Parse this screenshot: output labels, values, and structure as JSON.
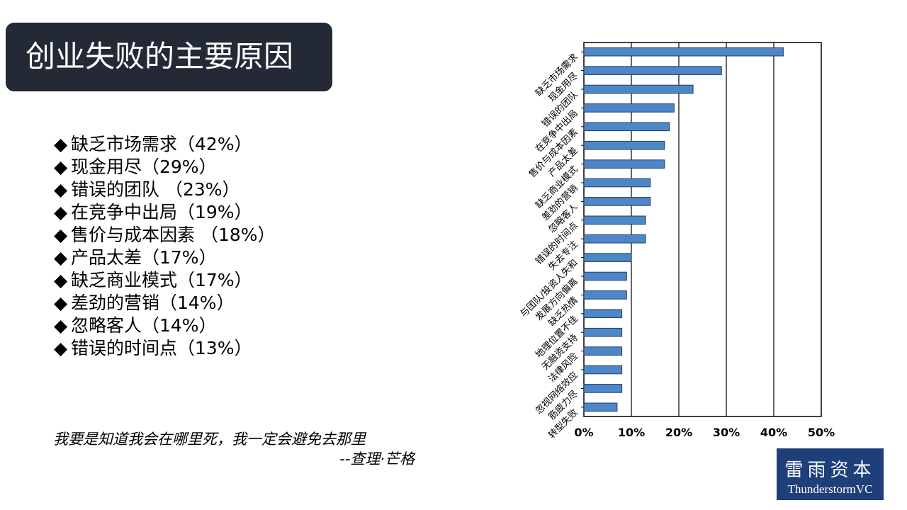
{
  "title": "创业失败的主要原因",
  "bullet_marker": "◆",
  "bullets": [
    "缺乏市场需求（42%）",
    "现金用尽（29%）",
    "错误的团队 （23%）",
    "在竞争中出局（19%）",
    "售价与成本因素 （18%）",
    "产品太差（17%）",
    "缺乏商业模式（17%）",
    "差劲的营销（14%）",
    "忽略客人（14%）",
    "错误的时间点（13%）"
  ],
  "quote": {
    "line1": "我要是知道我会在哪里死，我一定会避免去那里",
    "line2": "--查理·芒格"
  },
  "logo": {
    "cn": "雷雨资本",
    "en": "ThunderstormVC"
  },
  "chart_data": {
    "type": "bar",
    "orientation": "horizontal",
    "categories": [
      "缺乏市场需求",
      "现金用尽",
      "错误的团队",
      "在竞争中出局",
      "售价与成本因素",
      "产品太差",
      "缺乏商业模式",
      "差劲的营销",
      "忽略客人",
      "错误的时间点",
      "失去专注",
      "与团队/投资人失和",
      "发展方向偏离",
      "缺乏热情",
      "地理位置不佳",
      "无融资支持",
      "法律风险",
      "忽视网络效应",
      "筋疲力尽",
      "转型失败"
    ],
    "values": [
      42,
      29,
      23,
      19,
      18,
      17,
      17,
      14,
      14,
      13,
      13,
      10,
      9,
      9,
      8,
      8,
      8,
      8,
      8,
      7
    ],
    "xlim": [
      0,
      50
    ],
    "xticks": [
      "0%",
      "10%",
      "20%",
      "30%",
      "40%",
      "50%"
    ],
    "grid": true,
    "bar_color": "#4f86c6",
    "bar_edge_color": "#1f3f6f"
  }
}
